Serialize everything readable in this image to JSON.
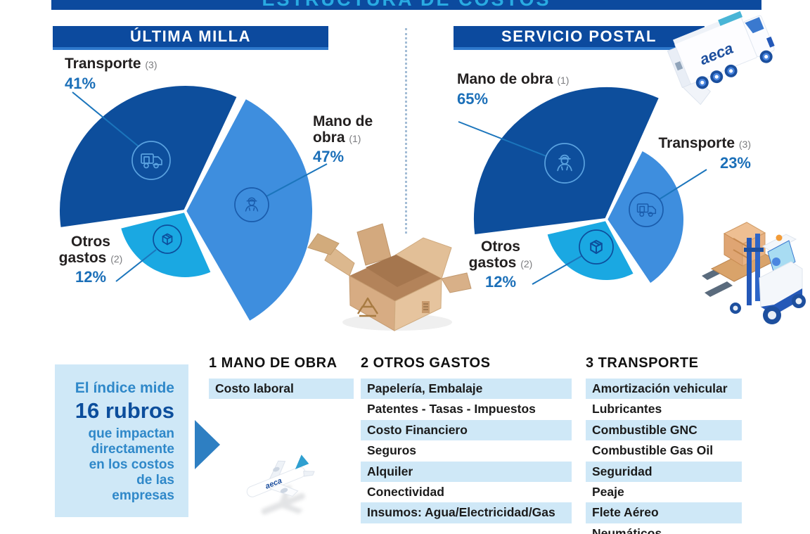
{
  "brand": "aeca",
  "title": "ESTRUCTURA DE COSTOS",
  "sections": {
    "last_mile_header": "ÚLTIMA MILLA",
    "postal_header": "SERVICIO POSTAL"
  },
  "chart_data": [
    {
      "type": "pie",
      "title": "ÚLTIMA MILLA",
      "unit": "%",
      "slices": [
        {
          "label": "Transporte",
          "ref": "(3)",
          "value": 41,
          "pct": "41%",
          "color": "#0d4e9c",
          "icon": "truck-icon"
        },
        {
          "label": "Mano de obra",
          "ref": "(1)",
          "value": 47,
          "pct": "47%",
          "color": "#3e8ede",
          "icon": "worker-icon"
        },
        {
          "label": "Otros gastos",
          "ref": "(2)",
          "value": 12,
          "pct": "12%",
          "color": "#1aa8e2",
          "icon": "box-icon"
        }
      ]
    },
    {
      "type": "pie",
      "title": "SERVICIO POSTAL",
      "unit": "%",
      "slices": [
        {
          "label": "Mano de obra",
          "ref": "(1)",
          "value": 65,
          "pct": "65%",
          "color": "#0d4e9c",
          "icon": "worker-icon"
        },
        {
          "label": "Transporte",
          "ref": "(3)",
          "value": 23,
          "pct": "23%",
          "color": "#3e8ede",
          "icon": "truck-icon"
        },
        {
          "label": "Otros gastos",
          "ref": "(2)",
          "value": 12,
          "pct": "12%",
          "color": "#1aa8e2",
          "icon": "box-icon"
        }
      ]
    }
  ],
  "note": {
    "intro": "El índice mide",
    "highlight": "16 rubros",
    "body": "que impactan directamente en los costos de las empresas"
  },
  "columns": [
    {
      "header": "1 MANO DE OBRA",
      "items": [
        "Costo laboral"
      ]
    },
    {
      "header": "2 OTROS GASTOS",
      "items": [
        "Papelería, Embalaje",
        "Patentes - Tasas - Impuestos",
        "Costo Financiero",
        "Seguros",
        "Alquiler",
        "Conectividad",
        "Insumos: Agua/Electricidad/Gas"
      ]
    },
    {
      "header": "3 TRANSPORTE",
      "items": [
        "Amortización vehicular",
        "Lubricantes",
        "Combustible GNC",
        "Combustible Gas Oil",
        "Seguridad",
        "Peaje",
        "Flete Aéreo",
        "Neumáticos"
      ]
    }
  ],
  "colors": {
    "dark_blue": "#0d4e9c",
    "light_blue": "#3e8ede",
    "cyan": "#1aa8e2",
    "row_bg": "#cfe8f7",
    "pct_text": "#1b6fb8",
    "title_text": "#29abe2"
  }
}
